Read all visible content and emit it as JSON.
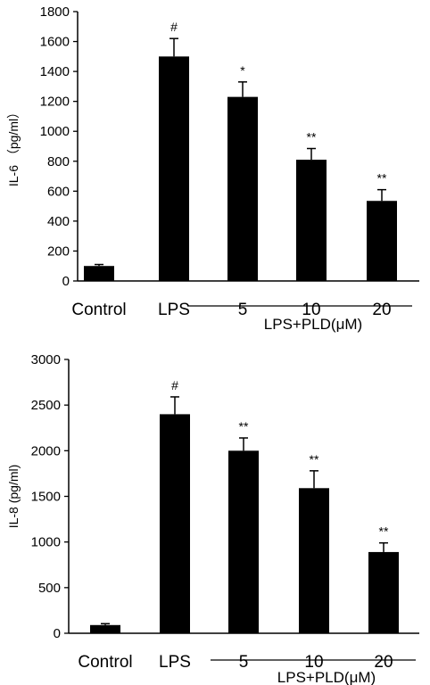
{
  "chart_data": [
    {
      "type": "bar",
      "categories": [
        "Control",
        "LPS",
        "5",
        "10",
        "20"
      ],
      "values": [
        100,
        1500,
        1230,
        810,
        535
      ],
      "errors": [
        10,
        120,
        100,
        75,
        75
      ],
      "significance": [
        "",
        "#",
        "*",
        "**",
        "**"
      ],
      "ylabel": "IL-6 （pg/ml）",
      "ylim": [
        0,
        1800
      ],
      "yticks": [
        0,
        200,
        400,
        600,
        800,
        1000,
        1200,
        1400,
        1600,
        1800
      ],
      "group_label": "LPS+PLD(μM)",
      "bar_color": "#000000",
      "grid": false
    },
    {
      "type": "bar",
      "categories": [
        "Control",
        "LPS",
        "5",
        "10",
        "20"
      ],
      "values": [
        90,
        2400,
        2000,
        1590,
        890
      ],
      "errors": [
        15,
        190,
        140,
        190,
        100
      ],
      "significance": [
        "",
        "#",
        "**",
        "**",
        "**"
      ],
      "ylabel": "IL-8 (pg/ml)",
      "ylim": [
        0,
        3000
      ],
      "yticks": [
        0,
        500,
        1000,
        1500,
        2000,
        2500,
        3000
      ],
      "group_label": "LPS+PLD(μM)",
      "bar_color": "#000000",
      "grid": false
    }
  ]
}
